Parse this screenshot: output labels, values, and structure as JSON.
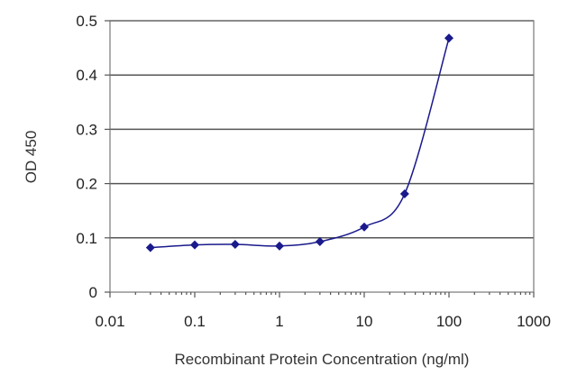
{
  "chart_data": {
    "type": "scatter",
    "title": "",
    "xlabel": "Recombinant Protein Concentration (ng/ml)",
    "ylabel": "OD 450",
    "xscale": "log",
    "xlim": [
      0.01,
      1000
    ],
    "ylim": [
      0,
      0.5
    ],
    "x_ticks": [
      "0.01",
      "0.1",
      "1",
      "10",
      "100",
      "1000"
    ],
    "y_ticks": [
      "0",
      "0.1",
      "0.2",
      "0.3",
      "0.4",
      "0.5"
    ],
    "grid": "horizontal",
    "legend": "none",
    "series": [
      {
        "x": [
          0.03,
          0.1,
          0.3,
          1,
          3,
          10,
          30,
          100
        ],
        "y": [
          0.082,
          0.087,
          0.088,
          0.085,
          0.093,
          0.12,
          0.181,
          0.468
        ],
        "color": "#1a1a8c",
        "line": "smooth"
      }
    ]
  }
}
